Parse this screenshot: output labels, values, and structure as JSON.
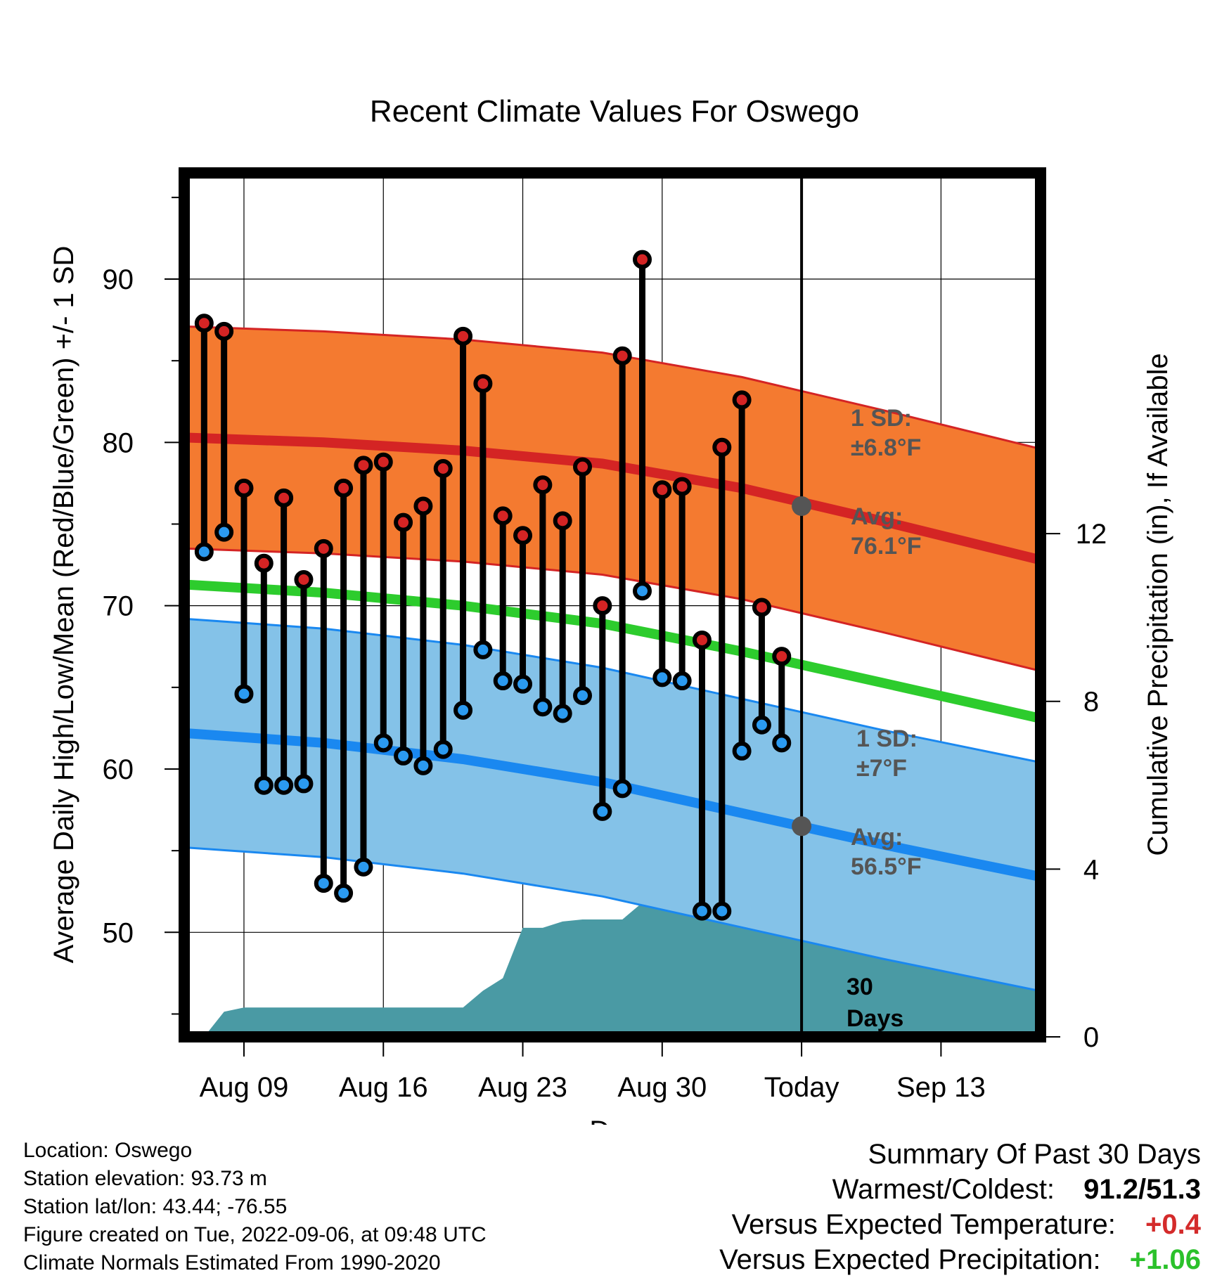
{
  "chart_data": {
    "type": "line",
    "title": "Recent Climate Values For Oswego",
    "xlabel": "Day",
    "ylabel": "Average Daily High/Low/Mean (Red/Blue/Green) +/- 1 SD",
    "y2label": "Cumulative Precipitation (in), If Available",
    "ylim": [
      43.6,
      96.5
    ],
    "y2lim": [
      0,
      20.6
    ],
    "yticks": [
      50,
      60,
      70,
      80,
      90
    ],
    "y2ticks": [
      0,
      4,
      8,
      12
    ],
    "x_range_days": [
      "2022-08-06",
      "2022-09-18"
    ],
    "xticks": [
      {
        "date": "2022-08-09",
        "label": "Aug 09"
      },
      {
        "date": "2022-08-16",
        "label": "Aug 16"
      },
      {
        "date": "2022-08-23",
        "label": "Aug 23"
      },
      {
        "date": "2022-08-30",
        "label": "Aug 30"
      },
      {
        "date": "2022-09-06",
        "label": "Today"
      },
      {
        "date": "2022-09-13",
        "label": "Sep 13"
      }
    ],
    "grid": true,
    "today": "2022-09-06",
    "window_label": "30\nDays",
    "colors": {
      "high_band": "#f47a30",
      "high_line": "#d42424",
      "low_band": "#84c2e8",
      "low_line": "#1a88f0",
      "mean_line": "#2dcc2d",
      "precip": "#4a9aa4",
      "high_point": "#d42424",
      "low_point": "#2b9af0",
      "annot": "#555555"
    },
    "normals_x": [
      "2022-08-06",
      "2022-08-13",
      "2022-08-20",
      "2022-08-27",
      "2022-09-03",
      "2022-09-10",
      "2022-09-18"
    ],
    "normal_high": [
      80.3,
      80.0,
      79.5,
      78.7,
      77.2,
      75.2,
      72.8
    ],
    "normal_high_sd": 6.8,
    "normal_low": [
      62.2,
      61.6,
      60.6,
      59.2,
      57.3,
      55.4,
      53.4
    ],
    "normal_low_sd": 7,
    "normal_mean": [
      71.3,
      70.8,
      70.0,
      68.9,
      67.2,
      65.3,
      63.1
    ],
    "annotations": [
      {
        "line1": "1 SD:",
        "line2": "±6.8°F",
        "series": "high_sd"
      },
      {
        "line1": "Avg:",
        "line2": "76.1°F",
        "series": "high_avg",
        "value": 76.1
      },
      {
        "line1": "1 SD:",
        "line2": "±7°F",
        "series": "low_sd"
      },
      {
        "line1": "Avg:",
        "line2": "56.5°F",
        "series": "low_avg",
        "value": 56.5
      }
    ],
    "daily": [
      {
        "date": "2022-08-07",
        "high": 87.3,
        "low": 73.3
      },
      {
        "date": "2022-08-08",
        "high": 86.8,
        "low": 74.5
      },
      {
        "date": "2022-08-09",
        "high": 77.2,
        "low": 64.6
      },
      {
        "date": "2022-08-10",
        "high": 72.6,
        "low": 59.0
      },
      {
        "date": "2022-08-11",
        "high": 76.6,
        "low": 59.0
      },
      {
        "date": "2022-08-12",
        "high": 71.6,
        "low": 59.1
      },
      {
        "date": "2022-08-13",
        "high": 73.5,
        "low": 53.0
      },
      {
        "date": "2022-08-14",
        "high": 77.2,
        "low": 52.4
      },
      {
        "date": "2022-08-15",
        "high": 78.6,
        "low": 54.0
      },
      {
        "date": "2022-08-16",
        "high": 78.8,
        "low": 61.6
      },
      {
        "date": "2022-08-17",
        "high": 75.1,
        "low": 60.8
      },
      {
        "date": "2022-08-18",
        "high": 76.1,
        "low": 60.2
      },
      {
        "date": "2022-08-19",
        "high": 78.4,
        "low": 61.2
      },
      {
        "date": "2022-08-20",
        "high": 86.5,
        "low": 63.6
      },
      {
        "date": "2022-08-21",
        "high": 83.6,
        "low": 67.3
      },
      {
        "date": "2022-08-22",
        "high": 75.5,
        "low": 65.4
      },
      {
        "date": "2022-08-23",
        "high": 74.3,
        "low": 65.2
      },
      {
        "date": "2022-08-24",
        "high": 77.4,
        "low": 63.8
      },
      {
        "date": "2022-08-25",
        "high": 75.2,
        "low": 63.4
      },
      {
        "date": "2022-08-26",
        "high": 78.5,
        "low": 64.5
      },
      {
        "date": "2022-08-27",
        "high": 70.0,
        "low": 57.4
      },
      {
        "date": "2022-08-28",
        "high": 85.3,
        "low": 58.8
      },
      {
        "date": "2022-08-29",
        "high": 91.2,
        "low": 70.9
      },
      {
        "date": "2022-08-30",
        "high": 77.1,
        "low": 65.6
      },
      {
        "date": "2022-08-31",
        "high": 77.3,
        "low": 65.4
      },
      {
        "date": "2022-09-01",
        "high": 67.9,
        "low": 51.3
      },
      {
        "date": "2022-09-02",
        "high": 79.7,
        "low": 51.3
      },
      {
        "date": "2022-09-03",
        "high": 82.6,
        "low": 61.1
      },
      {
        "date": "2022-09-04",
        "high": 69.9,
        "low": 62.7
      },
      {
        "date": "2022-09-05",
        "high": 66.9,
        "low": 61.6
      }
    ],
    "precip_cumulative": [
      {
        "date": "2022-08-07",
        "value": 0
      },
      {
        "date": "2022-08-08",
        "value": 0.6
      },
      {
        "date": "2022-08-09",
        "value": 0.7
      },
      {
        "date": "2022-08-19",
        "value": 0.7
      },
      {
        "date": "2022-08-20",
        "value": 0.7
      },
      {
        "date": "2022-08-21",
        "value": 1.1
      },
      {
        "date": "2022-08-22",
        "value": 1.4
      },
      {
        "date": "2022-08-23",
        "value": 2.6
      },
      {
        "date": "2022-08-24",
        "value": 2.6
      },
      {
        "date": "2022-08-25",
        "value": 2.75
      },
      {
        "date": "2022-08-26",
        "value": 2.8
      },
      {
        "date": "2022-08-28",
        "value": 2.8
      },
      {
        "date": "2022-08-29",
        "value": 3.2
      },
      {
        "date": "2022-08-30",
        "value": 3.8
      },
      {
        "date": "2022-09-01",
        "value": 4.3
      },
      {
        "date": "2022-09-03",
        "value": 4.3
      },
      {
        "date": "2022-09-04",
        "value": 4.5
      },
      {
        "date": "2022-09-18",
        "value": 4.5
      }
    ]
  },
  "info": {
    "location": "Location: Oswego",
    "elevation": "Station elevation: 93.73 m",
    "latlon": "Station lat/lon: 43.44; -76.55",
    "created": "Figure created on Tue, 2022-09-06, at 09:48 UTC",
    "normals": "Climate Normals Estimated From 1990-2020"
  },
  "summary": {
    "heading": "Summary Of Past 30 Days",
    "warm_cold_label": "Warmest/Coldest:",
    "warm_cold_value": "91.2/51.3",
    "temp_label": "Versus Expected Temperature:",
    "temp_value": "+0.4",
    "prcp_label": "Versus Expected Precipitation:",
    "prcp_value": "+1.06"
  }
}
